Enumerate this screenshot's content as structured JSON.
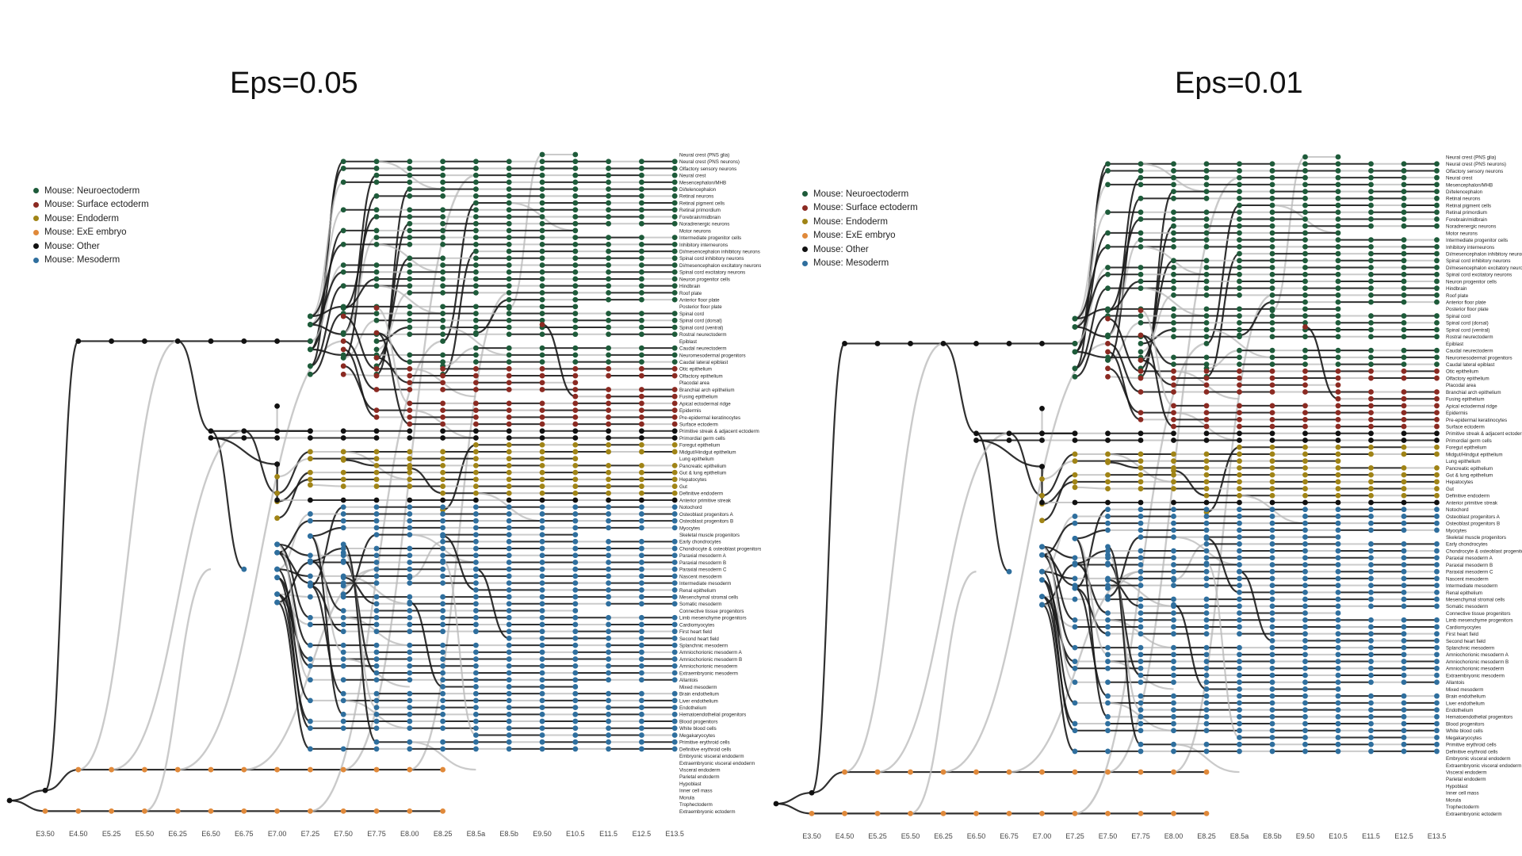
{
  "panels": [
    {
      "title": "Eps=0.05"
    },
    {
      "title": "Eps=0.01"
    }
  ],
  "legend": [
    {
      "label": "Mouse: Neuroectoderm",
      "color": "#1e5b3a"
    },
    {
      "label": "Mouse: Surface ectoderm",
      "color": "#8b2a22"
    },
    {
      "label": "Mouse: Endoderm",
      "color": "#a08416"
    },
    {
      "label": "Mouse: ExE embryo",
      "color": "#e0893a"
    },
    {
      "label": "Mouse: Other",
      "color": "#111111"
    },
    {
      "label": "Mouse: Mesoderm",
      "color": "#2f6f9e"
    }
  ],
  "timepoints": [
    "E3.50",
    "E4.50",
    "E5.25",
    "E5.50",
    "E6.25",
    "E6.50",
    "E6.75",
    "E7.00",
    "E7.25",
    "E7.50",
    "E7.75",
    "E8.00",
    "E8.25",
    "E8.5a",
    "E8.5b",
    "E9.50",
    "E10.5",
    "E11.5",
    "E12.5",
    "E13.5"
  ],
  "cell_types": [
    {
      "label": "Neural crest (PNS glia)",
      "group": "Neuroectoderm"
    },
    {
      "label": "Neural crest (PNS neurons)",
      "group": "Neuroectoderm"
    },
    {
      "label": "Olfactory sensory neurons",
      "group": "Neuroectoderm"
    },
    {
      "label": "Neural crest",
      "group": "Neuroectoderm"
    },
    {
      "label": "Mesencephalon/MHB",
      "group": "Neuroectoderm"
    },
    {
      "label": "Di/telencephalon",
      "group": "Neuroectoderm"
    },
    {
      "label": "Retinal neurons",
      "group": "Neuroectoderm"
    },
    {
      "label": "Retinal pigment cells",
      "group": "Neuroectoderm"
    },
    {
      "label": "Retinal primordium",
      "group": "Neuroectoderm"
    },
    {
      "label": "Forebrain/midbrain",
      "group": "Neuroectoderm"
    },
    {
      "label": "Noradrenergic neurons",
      "group": "Neuroectoderm"
    },
    {
      "label": "Motor neurons",
      "group": "Neuroectoderm"
    },
    {
      "label": "Intermediate progenitor cells",
      "group": "Neuroectoderm"
    },
    {
      "label": "Inhibitory interneurons",
      "group": "Neuroectoderm"
    },
    {
      "label": "Di/mesencephalon inhibitory neurons",
      "group": "Neuroectoderm"
    },
    {
      "label": "Spinal cord inhibitory neurons",
      "group": "Neuroectoderm"
    },
    {
      "label": "Di/mesencephalon excitatory neurons",
      "group": "Neuroectoderm"
    },
    {
      "label": "Spinal cord excitatory neurons",
      "group": "Neuroectoderm"
    },
    {
      "label": "Neuron progenitor cells",
      "group": "Neuroectoderm"
    },
    {
      "label": "Hindbrain",
      "group": "Neuroectoderm"
    },
    {
      "label": "Roof plate",
      "group": "Neuroectoderm"
    },
    {
      "label": "Anterior floor plate",
      "group": "Neuroectoderm"
    },
    {
      "label": "Posterior floor plate",
      "group": "Neuroectoderm"
    },
    {
      "label": "Spinal cord",
      "group": "Neuroectoderm"
    },
    {
      "label": "Spinal cord (dorsal)",
      "group": "Neuroectoderm"
    },
    {
      "label": "Spinal cord (ventral)",
      "group": "Neuroectoderm"
    },
    {
      "label": "Rostral neurectoderm",
      "group": "Neuroectoderm"
    },
    {
      "label": "Epiblast",
      "group": "Other"
    },
    {
      "label": "Caudal neurectoderm",
      "group": "Neuroectoderm"
    },
    {
      "label": "Neuromesodermal progenitors",
      "group": "Neuroectoderm"
    },
    {
      "label": "Caudal lateral epiblast",
      "group": "Neuroectoderm"
    },
    {
      "label": "Otic epithelium",
      "group": "Surface ectoderm"
    },
    {
      "label": "Olfactory epithelium",
      "group": "Surface ectoderm"
    },
    {
      "label": "Placodal area",
      "group": "Surface ectoderm"
    },
    {
      "label": "Branchial arch epithelium",
      "group": "Surface ectoderm"
    },
    {
      "label": "Fusing epithelium",
      "group": "Surface ectoderm"
    },
    {
      "label": "Apical ectodermal ridge",
      "group": "Surface ectoderm"
    },
    {
      "label": "Epidermis",
      "group": "Surface ectoderm"
    },
    {
      "label": "Pre-epidermal keratinocytes",
      "group": "Surface ectoderm"
    },
    {
      "label": "Surface ectoderm",
      "group": "Surface ectoderm"
    },
    {
      "label": "Primitive streak & adjacent ectoderm",
      "group": "Other"
    },
    {
      "label": "Primordial germ cells",
      "group": "Other"
    },
    {
      "label": "Foregut epithelium",
      "group": "Endoderm"
    },
    {
      "label": "Midgut/Hindgut epithelium",
      "group": "Endoderm"
    },
    {
      "label": "Lung epithelium",
      "group": "Endoderm"
    },
    {
      "label": "Pancreatic epithelium",
      "group": "Endoderm"
    },
    {
      "label": "Gut & lung epithelium",
      "group": "Endoderm"
    },
    {
      "label": "Hepatocytes",
      "group": "Endoderm"
    },
    {
      "label": "Gut",
      "group": "Endoderm"
    },
    {
      "label": "Definitive endoderm",
      "group": "Endoderm"
    },
    {
      "label": "Anterior primitive streak",
      "group": "Other"
    },
    {
      "label": "Notochord",
      "group": "Mesoderm"
    },
    {
      "label": "Osteoblast progenitors A",
      "group": "Mesoderm"
    },
    {
      "label": "Osteoblast progenitors B",
      "group": "Mesoderm"
    },
    {
      "label": "Myocytes",
      "group": "Mesoderm"
    },
    {
      "label": "Skeletal muscle progenitors",
      "group": "Mesoderm"
    },
    {
      "label": "Early chondrocytes",
      "group": "Mesoderm"
    },
    {
      "label": "Chondrocyte & osteoblast progenitors",
      "group": "Mesoderm"
    },
    {
      "label": "Paraxial mesoderm A",
      "group": "Mesoderm"
    },
    {
      "label": "Paraxial mesoderm B",
      "group": "Mesoderm"
    },
    {
      "label": "Paraxial mesoderm C",
      "group": "Mesoderm"
    },
    {
      "label": "Nascent mesoderm",
      "group": "Mesoderm"
    },
    {
      "label": "Intermediate mesoderm",
      "group": "Mesoderm"
    },
    {
      "label": "Renal epithelium",
      "group": "Mesoderm"
    },
    {
      "label": "Mesenchymal stromal cells",
      "group": "Mesoderm"
    },
    {
      "label": "Somatic mesoderm",
      "group": "Mesoderm"
    },
    {
      "label": "Connective tissue progenitors",
      "group": "Mesoderm"
    },
    {
      "label": "Limb mesenchyme progenitors",
      "group": "Mesoderm"
    },
    {
      "label": "Cardiomyocytes",
      "group": "Mesoderm"
    },
    {
      "label": "First heart field",
      "group": "Mesoderm"
    },
    {
      "label": "Second heart field",
      "group": "Mesoderm"
    },
    {
      "label": "Splanchnic mesoderm",
      "group": "Mesoderm"
    },
    {
      "label": "Amniochorionic mesoderm A",
      "group": "Mesoderm"
    },
    {
      "label": "Amniochorionic mesoderm B",
      "group": "Mesoderm"
    },
    {
      "label": "Amniochorionic mesoderm",
      "group": "Mesoderm"
    },
    {
      "label": "Extraembryonic mesoderm",
      "group": "Mesoderm"
    },
    {
      "label": "Allantois",
      "group": "Mesoderm"
    },
    {
      "label": "Mixed mesoderm",
      "group": "Mesoderm"
    },
    {
      "label": "Brain endothelium",
      "group": "Mesoderm"
    },
    {
      "label": "Liver endothelium",
      "group": "Mesoderm"
    },
    {
      "label": "Endothelium",
      "group": "Mesoderm"
    },
    {
      "label": "Hematoendothelial progenitors",
      "group": "Mesoderm"
    },
    {
      "label": "Blood progenitors",
      "group": "Mesoderm"
    },
    {
      "label": "White blood cells",
      "group": "Mesoderm"
    },
    {
      "label": "Megakaryocytes",
      "group": "Mesoderm"
    },
    {
      "label": "Primitive erythroid cells",
      "group": "Mesoderm"
    },
    {
      "label": "Definitive erythroid cells",
      "group": "Mesoderm"
    },
    {
      "label": "Embryonic visceral endoderm",
      "group": "ExE embryo"
    },
    {
      "label": "Extraembryonic visceral endoderm",
      "group": "ExE embryo"
    },
    {
      "label": "Visceral endoderm",
      "group": "ExE embryo"
    },
    {
      "label": "Parietal endoderm",
      "group": "ExE embryo"
    },
    {
      "label": "Hypoblast",
      "group": "ExE embryo"
    },
    {
      "label": "Inner cell mass",
      "group": "Other"
    },
    {
      "label": "Morula",
      "group": "Other"
    },
    {
      "label": "Trophectoderm",
      "group": "ExE embryo"
    },
    {
      "label": "Extraembryonic ectoderm",
      "group": "ExE embryo"
    }
  ]
}
